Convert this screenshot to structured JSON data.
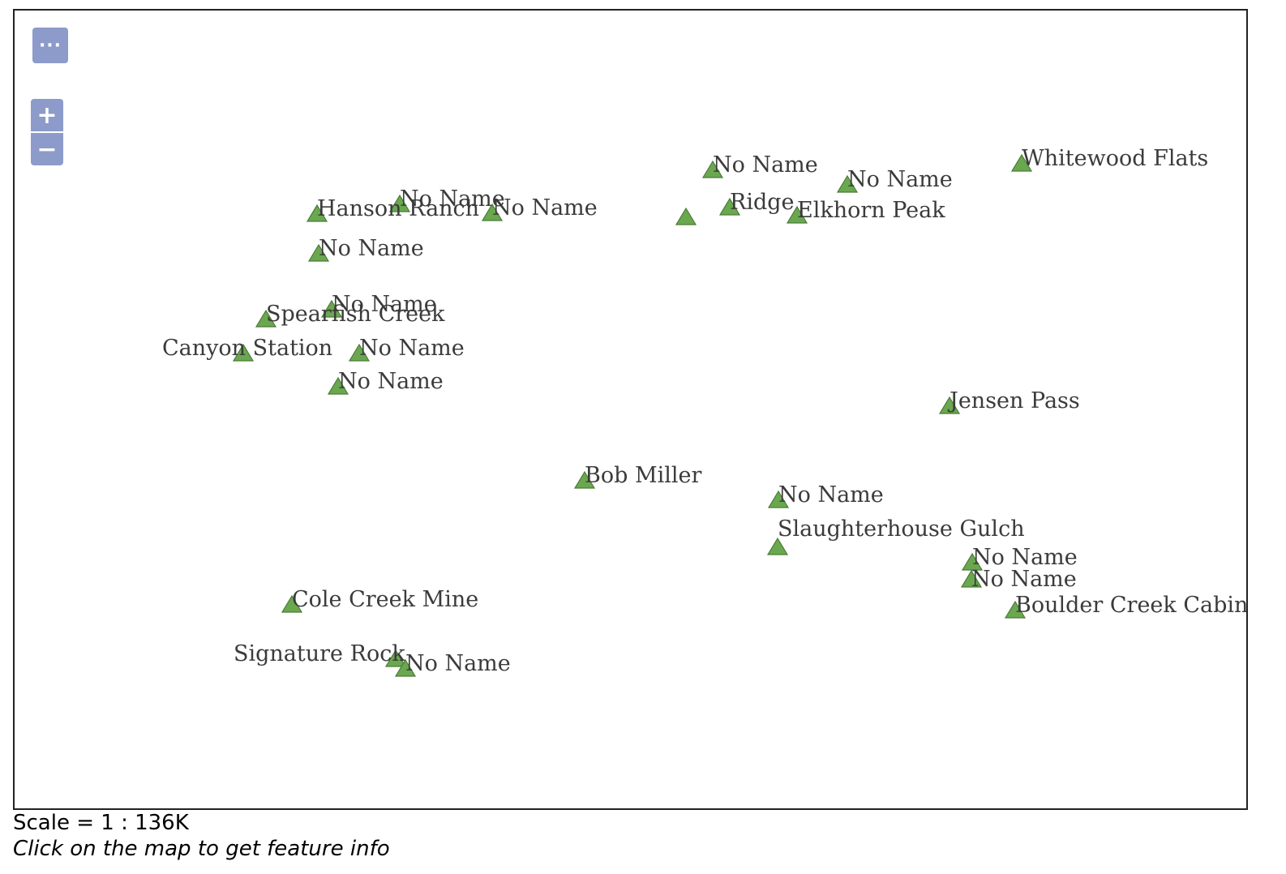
{
  "map": {
    "controls": {
      "layer_switcher_icon": "ellipsis-icon",
      "layer_switcher_glyph": "···",
      "zoom_in_glyph": "+",
      "zoom_out_glyph": "−"
    },
    "marker_color": "#6aa84f",
    "marker_stroke": "#4a7a37",
    "features": [
      {
        "label": "No Name"
      },
      {
        "label": "Hanson Ranch"
      },
      {
        "label": "No Name"
      },
      {
        "label": ""
      },
      {
        "label": "No Name"
      },
      {
        "label": "Ridge"
      },
      {
        "label": "Elkhorn Peak"
      },
      {
        "label": "No Name"
      },
      {
        "label": "Whitewood Flats"
      },
      {
        "label": "No Name"
      },
      {
        "label": "No Name"
      },
      {
        "label": "Spearfish Creek"
      },
      {
        "label": "Canyon Station"
      },
      {
        "label": "No Name"
      },
      {
        "label": "No Name"
      },
      {
        "label": "Jensen Pass"
      },
      {
        "label": "Bob Miller"
      },
      {
        "label": "No Name"
      },
      {
        "label": "Slaughterhouse Gulch"
      },
      {
        "label": "No Name"
      },
      {
        "label": "No Name"
      },
      {
        "label": "Boulder Creek Cabin"
      },
      {
        "label": "Cole Creek Mine"
      },
      {
        "label": "Signature Rock"
      },
      {
        "label": "No Name"
      }
    ]
  },
  "footer": {
    "scale_text": "Scale = 1 : 136K",
    "hint_text": "Click on the map to get feature info"
  }
}
